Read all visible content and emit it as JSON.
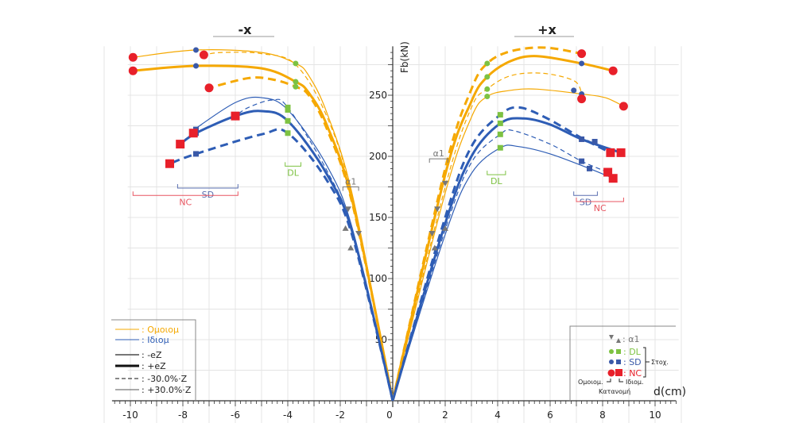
{
  "chart_data": {
    "type": "line",
    "title_left": "-x",
    "title_right": "+x",
    "xlabel": "d(cm)",
    "ylabel": "Fb(kN)",
    "xlim": [
      -11,
      11
    ],
    "ylim": [
      0,
      290
    ],
    "x_ticks": [
      -10,
      -8,
      -6,
      -4,
      -2,
      0,
      2,
      4,
      6,
      8,
      10
    ],
    "y_ticks": [
      50,
      100,
      150,
      200,
      250
    ],
    "grid": true,
    "colors": {
      "omoiom": "#f5a800",
      "idiom": "#2e5db5",
      "dl": "#7dc242",
      "sd": "#3a59a8",
      "nc": "#e8202a",
      "a1": "#777777",
      "bracket_sd": "#5a6fb0",
      "bracket_nc": "#e85560"
    },
    "series": [
      {
        "name": "Ομοιομ +eZ",
        "group": "omoiom",
        "style": "thick-solid",
        "side": "+x",
        "points": [
          [
            0,
            0
          ],
          [
            2,
            185
          ],
          [
            3,
            245
          ],
          [
            3.6,
            265
          ],
          [
            4.5,
            278
          ],
          [
            5.5,
            282
          ],
          [
            7.2,
            276
          ],
          [
            8.4,
            270
          ]
        ]
      },
      {
        "name": "Ομοιομ -30.0%·Z",
        "group": "omoiom",
        "style": "thick-dash",
        "side": "+x",
        "points": [
          [
            0,
            0
          ],
          [
            2,
            190
          ],
          [
            3,
            255
          ],
          [
            3.6,
            276
          ],
          [
            4.5,
            286
          ],
          [
            5.8,
            289
          ],
          [
            7.2,
            284
          ]
        ]
      },
      {
        "name": "Ομοιομ +30.0%·Z",
        "group": "omoiom",
        "style": "thin-solid",
        "side": "+x",
        "points": [
          [
            0,
            0
          ],
          [
            2,
            170
          ],
          [
            3,
            232
          ],
          [
            3.6,
            249
          ],
          [
            4.5,
            254
          ],
          [
            5.5,
            255
          ],
          [
            7.2,
            251
          ],
          [
            8.1,
            248
          ],
          [
            8.8,
            241
          ]
        ]
      },
      {
        "name": "Ομοιομ -eZ",
        "group": "omoiom",
        "style": "thin-dash",
        "side": "+x",
        "points": [
          [
            0,
            0
          ],
          [
            2,
            175
          ],
          [
            3,
            240
          ],
          [
            3.6,
            255
          ],
          [
            4.5,
            266
          ],
          [
            5.7,
            268
          ],
          [
            6.9,
            262
          ],
          [
            7.2,
            252
          ]
        ]
      },
      {
        "name": "Ιδιομ +eZ",
        "group": "idiom",
        "style": "thick-solid",
        "side": "+x",
        "points": [
          [
            0,
            0
          ],
          [
            2,
            145
          ],
          [
            3,
            200
          ],
          [
            4.1,
            227
          ],
          [
            5,
            231
          ],
          [
            6,
            226
          ],
          [
            7.2,
            214
          ],
          [
            8.7,
            203
          ]
        ]
      },
      {
        "name": "Ιδιομ -30.0%·Z",
        "group": "idiom",
        "style": "thick-dash",
        "side": "+x",
        "points": [
          [
            0,
            0
          ],
          [
            2,
            150
          ],
          [
            3,
            208
          ],
          [
            4.1,
            234
          ],
          [
            4.8,
            240
          ],
          [
            5.8,
            232
          ],
          [
            7.2,
            215
          ],
          [
            8.3,
            203
          ]
        ]
      },
      {
        "name": "Ιδιομ +30.0%·Z",
        "group": "idiom",
        "style": "thin-solid",
        "side": "+x",
        "points": [
          [
            0,
            0
          ],
          [
            2,
            136
          ],
          [
            3,
            186
          ],
          [
            4.1,
            207
          ],
          [
            4.8,
            208
          ],
          [
            6,
            202
          ],
          [
            7.5,
            190
          ],
          [
            8.4,
            182
          ]
        ]
      },
      {
        "name": "Ιδιομ -eZ",
        "group": "idiom",
        "style": "thin-dash",
        "side": "+x",
        "points": [
          [
            0,
            0
          ],
          [
            2,
            140
          ],
          [
            3,
            195
          ],
          [
            4.1,
            218
          ],
          [
            4.6,
            221
          ],
          [
            6,
            210
          ],
          [
            7.2,
            196
          ],
          [
            8.2,
            187
          ]
        ]
      },
      {
        "name": "Ομοιομ +eZ (-x)",
        "group": "omoiom",
        "style": "thick-solid",
        "side": "-x",
        "points": [
          [
            0,
            0
          ],
          [
            -1.5,
            160
          ],
          [
            -2.5,
            225
          ],
          [
            -3.2,
            252
          ],
          [
            -3.7,
            261
          ],
          [
            -5,
            272
          ],
          [
            -7.5,
            274
          ],
          [
            -9.9,
            270
          ]
        ]
      },
      {
        "name": "Ομοιομ -30.0%·Z (-x)",
        "group": "omoiom",
        "style": "thick-dash",
        "side": "-x",
        "points": [
          [
            0,
            0
          ],
          [
            -1.5,
            158
          ],
          [
            -2.5,
            222
          ],
          [
            -3.2,
            250
          ],
          [
            -3.7,
            257
          ],
          [
            -4.6,
            263
          ],
          [
            -5.5,
            264
          ],
          [
            -7,
            256
          ]
        ]
      },
      {
        "name": "Ομοιομ +30.0%·Z (-x)",
        "group": "omoiom",
        "style": "thin-solid",
        "side": "-x",
        "points": [
          [
            0,
            0
          ],
          [
            -1.5,
            165
          ],
          [
            -2.5,
            235
          ],
          [
            -3.2,
            266
          ],
          [
            -3.7,
            276
          ],
          [
            -5,
            285
          ],
          [
            -7.5,
            287
          ],
          [
            -9.9,
            281
          ]
        ]
      },
      {
        "name": "Ομοιομ -eZ (-x)",
        "group": "omoiom",
        "style": "thin-dash",
        "side": "-x",
        "points": [
          [
            0,
            0
          ],
          [
            -1.5,
            163
          ],
          [
            -2.5,
            232
          ],
          [
            -3.7,
            275
          ],
          [
            -5,
            284
          ],
          [
            -6.5,
            285
          ],
          [
            -7.2,
            283
          ]
        ]
      },
      {
        "name": "Ιδιομ +eZ (-x)",
        "group": "idiom",
        "style": "thick-solid",
        "side": "-x",
        "points": [
          [
            0,
            0
          ],
          [
            -1.5,
            135
          ],
          [
            -2.5,
            185
          ],
          [
            -4,
            229
          ],
          [
            -5,
            237
          ],
          [
            -6,
            233
          ],
          [
            -7.5,
            219
          ],
          [
            -8.1,
            210
          ]
        ]
      },
      {
        "name": "Ιδιομ -30.0%·Z (-x)",
        "group": "idiom",
        "style": "thick-dash",
        "side": "-x",
        "points": [
          [
            0,
            0
          ],
          [
            -1.5,
            132
          ],
          [
            -2.5,
            180
          ],
          [
            -4,
            219
          ],
          [
            -5,
            218
          ],
          [
            -7.5,
            202
          ],
          [
            -8.5,
            194
          ]
        ]
      },
      {
        "name": "Ιδιομ +30.0%·Z (-x)",
        "group": "idiom",
        "style": "thin-solid",
        "side": "-x",
        "points": [
          [
            0,
            0
          ],
          [
            -1.5,
            138
          ],
          [
            -2.5,
            192
          ],
          [
            -4,
            238
          ],
          [
            -5,
            248
          ],
          [
            -6,
            244
          ],
          [
            -7.5,
            223
          ]
        ]
      },
      {
        "name": "Ιδιομ -eZ (-x)",
        "group": "idiom",
        "style": "thin-dash",
        "side": "-x",
        "points": [
          [
            0,
            0
          ],
          [
            -1.5,
            136
          ],
          [
            -2.5,
            188
          ],
          [
            -4,
            240
          ],
          [
            -4.6,
            246
          ],
          [
            -5.5,
            240
          ],
          [
            -6,
            233
          ]
        ]
      }
    ],
    "markers": [
      {
        "type": "circle",
        "state": "DL",
        "points": [
          [
            3.6,
            265
          ],
          [
            3.6,
            276
          ],
          [
            3.6,
            249
          ],
          [
            3.6,
            255
          ],
          [
            -3.7,
            261
          ],
          [
            -3.7,
            257
          ],
          [
            -3.7,
            276
          ]
        ]
      },
      {
        "type": "square",
        "state": "DL",
        "points": [
          [
            4.1,
            227
          ],
          [
            4.1,
            234
          ],
          [
            4.1,
            207
          ],
          [
            4.1,
            218
          ],
          [
            -4,
            229
          ],
          [
            -4,
            219
          ],
          [
            -4,
            238
          ],
          [
            -4,
            240
          ]
        ]
      },
      {
        "type": "circle",
        "state": "SD",
        "points": [
          [
            7.2,
            276
          ],
          [
            6.9,
            254
          ],
          [
            7.2,
            251
          ],
          [
            -7.5,
            274
          ],
          [
            -7.5,
            287
          ]
        ]
      },
      {
        "type": "square",
        "state": "SD",
        "points": [
          [
            7.2,
            214
          ],
          [
            7.7,
            212
          ],
          [
            7.2,
            196
          ],
          [
            7.5,
            190
          ],
          [
            -7.5,
            219
          ],
          [
            -7.5,
            202
          ],
          [
            -7.5,
            222
          ]
        ]
      },
      {
        "type": "circle",
        "state": "NC",
        "points": [
          [
            7.2,
            284
          ],
          [
            8.4,
            270
          ],
          [
            7.2,
            247
          ],
          [
            8.8,
            241
          ],
          [
            -9.9,
            270
          ],
          [
            -9.9,
            281
          ],
          [
            -7.2,
            283
          ],
          [
            -7,
            256
          ]
        ]
      },
      {
        "type": "square",
        "state": "NC",
        "points": [
          [
            8.7,
            203
          ],
          [
            8.3,
            203
          ],
          [
            8.2,
            187
          ],
          [
            8.4,
            182
          ],
          [
            -8.1,
            210
          ],
          [
            -7.6,
            219
          ],
          [
            -6,
            233
          ],
          [
            -8.5,
            194
          ]
        ]
      },
      {
        "type": "tri-down",
        "state": "a1",
        "points": [
          [
            -1.7,
            157
          ],
          [
            -1.3,
            137
          ],
          [
            1.5,
            137
          ],
          [
            1.7,
            157
          ],
          [
            2,
            178
          ]
        ]
      },
      {
        "type": "tri-up",
        "state": "a1",
        "points": [
          [
            -1.8,
            141
          ],
          [
            -1.6,
            125
          ],
          [
            1.6,
            125
          ],
          [
            2,
            141
          ]
        ]
      }
    ],
    "brackets": [
      {
        "label": "DL",
        "side": "-x",
        "from": -4.1,
        "to": -3.5,
        "level": 192,
        "color": "dl"
      },
      {
        "label": "SD",
        "side": "-x",
        "from": -8.2,
        "to": -5.9,
        "level": 174,
        "color": "bracket_sd"
      },
      {
        "label": "NC",
        "side": "-x",
        "from": -9.9,
        "to": -5.9,
        "level": 168,
        "color": "bracket_nc"
      },
      {
        "label": "α1",
        "side": "-x",
        "from": -1.9,
        "to": -1.3,
        "level": 175,
        "color": "a1"
      },
      {
        "label": "α1",
        "side": "+x",
        "from": 1.4,
        "to": 2.1,
        "level": 198,
        "color": "a1"
      },
      {
        "label": "DL",
        "side": "+x",
        "from": 3.6,
        "to": 4.3,
        "level": 185,
        "color": "dl"
      },
      {
        "label": "SD",
        "side": "+x",
        "from": 6.9,
        "to": 7.8,
        "level": 168,
        "color": "bracket_sd"
      },
      {
        "label": "NC",
        "side": "+x",
        "from": 7.0,
        "to": 8.8,
        "level": 163,
        "color": "bracket_nc"
      }
    ],
    "legend_left": {
      "placement": "bottom-left",
      "items": [
        {
          "label": ": Ομοιομ",
          "color": "#f5a800",
          "style": "thin"
        },
        {
          "label": ": Ιδιομ",
          "color": "#2e5db5",
          "style": "thin"
        },
        {
          "label": ": -eZ",
          "color": "#777777",
          "style": "medium"
        },
        {
          "label": ": +eZ",
          "color": "#111111",
          "style": "thick"
        },
        {
          "label": ": -30.0%·Z",
          "color": "#111111",
          "style": "dash"
        },
        {
          "label": ": +30.0%·Z",
          "color": "#555555",
          "style": "thin"
        }
      ]
    },
    "legend_right": {
      "placement": "bottom-right",
      "a1_label": ": α1",
      "dl_label": ": DL",
      "sd_label": ": SD",
      "nc_label": ": NC",
      "group_label": "Στοχ.",
      "omoiom_label": "Ομοιομ.",
      "idiom_label": "Ιδιομ.",
      "distribution_label": "Κατανομή"
    }
  }
}
